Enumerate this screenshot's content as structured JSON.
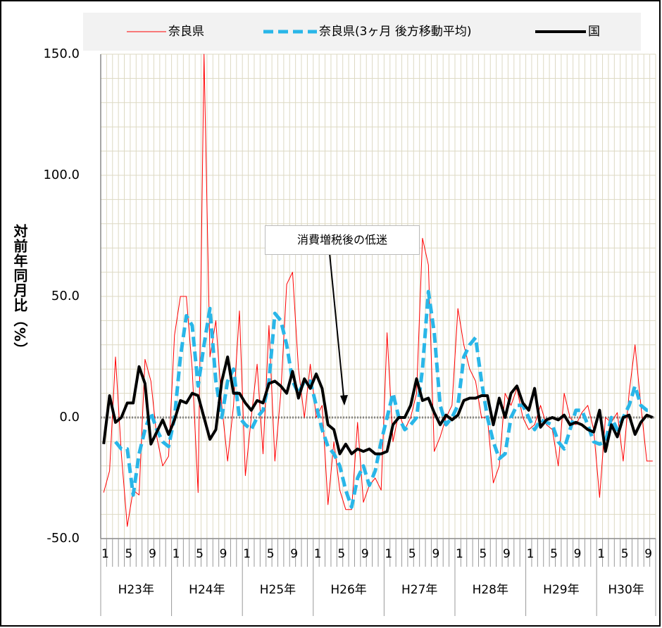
{
  "chart_data": {
    "type": "line",
    "y_label": "対前年同月比（%）",
    "annotation": "消費増税後の低迷",
    "ylim": [
      -50,
      150
    ],
    "yticks": [
      {
        "value": -50,
        "label": "-50.0"
      },
      {
        "value": 0,
        "label": "0.0"
      },
      {
        "value": 50,
        "label": "50.0"
      },
      {
        "value": 100,
        "label": "100.0"
      },
      {
        "value": 150,
        "label": "150.0"
      }
    ],
    "negative_tick_color": "#ff0000",
    "ygrid": [
      -40,
      -30,
      -20,
      -10,
      10,
      20,
      30,
      40,
      60,
      70,
      80,
      90,
      110,
      120,
      130,
      140
    ],
    "grid": true,
    "legend": "top",
    "groups": [
      {
        "label": "H23年",
        "months": 12
      },
      {
        "label": "H24年",
        "months": 12
      },
      {
        "label": "H25年",
        "months": 12
      },
      {
        "label": "H26年",
        "months": 12
      },
      {
        "label": "H27年",
        "months": 12
      },
      {
        "label": "H28年",
        "months": 12
      },
      {
        "label": "H29年",
        "months": 12
      },
      {
        "label": "H30年",
        "months": 10
      }
    ],
    "categories": [
      "1",
      null,
      null,
      null,
      "5",
      null,
      null,
      null,
      "9",
      null,
      null,
      null,
      "1",
      null,
      null,
      null,
      "5",
      null,
      null,
      null,
      "9",
      null,
      null,
      null,
      "1",
      null,
      null,
      null,
      "5",
      null,
      null,
      null,
      "9",
      null,
      null,
      null,
      "1",
      null,
      null,
      null,
      "5",
      null,
      null,
      null,
      "9",
      null,
      null,
      null,
      "1",
      null,
      null,
      null,
      "5",
      null,
      null,
      null,
      "9",
      null,
      null,
      null,
      "1",
      null,
      null,
      null,
      "5",
      null,
      null,
      null,
      "9",
      null,
      null,
      null,
      "1",
      null,
      null,
      null,
      "5",
      null,
      null,
      null,
      "9",
      null,
      null,
      null,
      "1",
      null,
      null,
      null,
      "5",
      null,
      null,
      null,
      "9",
      null
    ],
    "series": [
      {
        "name": "奈良県",
        "color": "#ff0000",
        "style": "thin",
        "values": [
          -31,
          -22,
          25,
          -15,
          -45,
          -30,
          -32,
          24,
          15,
          -8,
          -20,
          -16,
          34,
          50,
          50,
          20,
          -31,
          150,
          25,
          40,
          5,
          -18,
          5,
          44,
          -24,
          0,
          22,
          -15,
          38,
          -18,
          10,
          55,
          60,
          20,
          0,
          22,
          0,
          5,
          -36,
          -10,
          -30,
          -38,
          -38,
          -2,
          -35,
          -28,
          -25,
          -30,
          35,
          -10,
          2,
          -5,
          0,
          10,
          74,
          63,
          -14,
          -8,
          0,
          5,
          45,
          30,
          20,
          15,
          0,
          0,
          -27,
          -20,
          10,
          5,
          12,
          0,
          -5,
          -3,
          5,
          -3,
          -5,
          -20,
          10,
          0,
          -3,
          2,
          5,
          -5,
          -33,
          0,
          -2,
          2,
          -18,
          10,
          30,
          5,
          -18,
          -18
        ]
      },
      {
        "name": "奈良県(3ヶ月 後方移動平均)",
        "color": "#29b6e8",
        "style": "dashed",
        "values": [
          null,
          null,
          -10,
          -13,
          -13,
          -32,
          -15,
          -5,
          2,
          -5,
          -10,
          -12,
          0,
          25,
          42,
          38,
          13,
          30,
          45,
          15,
          0,
          15,
          20,
          0,
          -3,
          -5,
          0,
          3,
          15,
          43,
          40,
          30,
          15,
          10,
          15,
          15,
          5,
          -5,
          -12,
          -15,
          -20,
          -30,
          -37,
          -25,
          -20,
          -28,
          -22,
          -10,
          0,
          10,
          0,
          -5,
          -3,
          0,
          20,
          52,
          35,
          5,
          -3,
          0,
          5,
          25,
          30,
          33,
          15,
          0,
          -10,
          -17,
          -15,
          0,
          5,
          5,
          0,
          -5,
          -1,
          -2,
          -3,
          -10,
          -13,
          -5,
          3,
          3,
          -3,
          -10,
          -11,
          -10,
          0,
          -5,
          0,
          5,
          13,
          5,
          3,
          3
        ]
      },
      {
        "name": "国",
        "color": "#000000",
        "style": "bold",
        "values": [
          -11,
          9,
          -2,
          0,
          6,
          6,
          21,
          14,
          -11,
          -6,
          -1,
          -7,
          -1,
          7,
          6,
          10,
          9,
          0,
          -9,
          -5,
          15,
          25,
          10,
          10,
          6,
          3,
          7,
          6,
          14,
          15,
          13,
          10,
          19,
          8,
          16,
          12,
          18,
          12,
          -3,
          -5,
          -15,
          -11,
          -15,
          -13,
          -14,
          -13,
          -15,
          -15,
          -14,
          -3,
          0,
          0,
          5,
          16,
          7,
          8,
          2,
          -3,
          1,
          -1,
          1,
          7,
          8,
          8,
          9,
          9,
          -3,
          8,
          0,
          10,
          13,
          6,
          3,
          12,
          -4,
          -1,
          0,
          -1,
          1,
          -3,
          -2,
          -3,
          -5,
          -6,
          3,
          -14,
          -3,
          -8,
          0,
          1,
          -7,
          -2,
          1,
          0
        ]
      }
    ]
  }
}
